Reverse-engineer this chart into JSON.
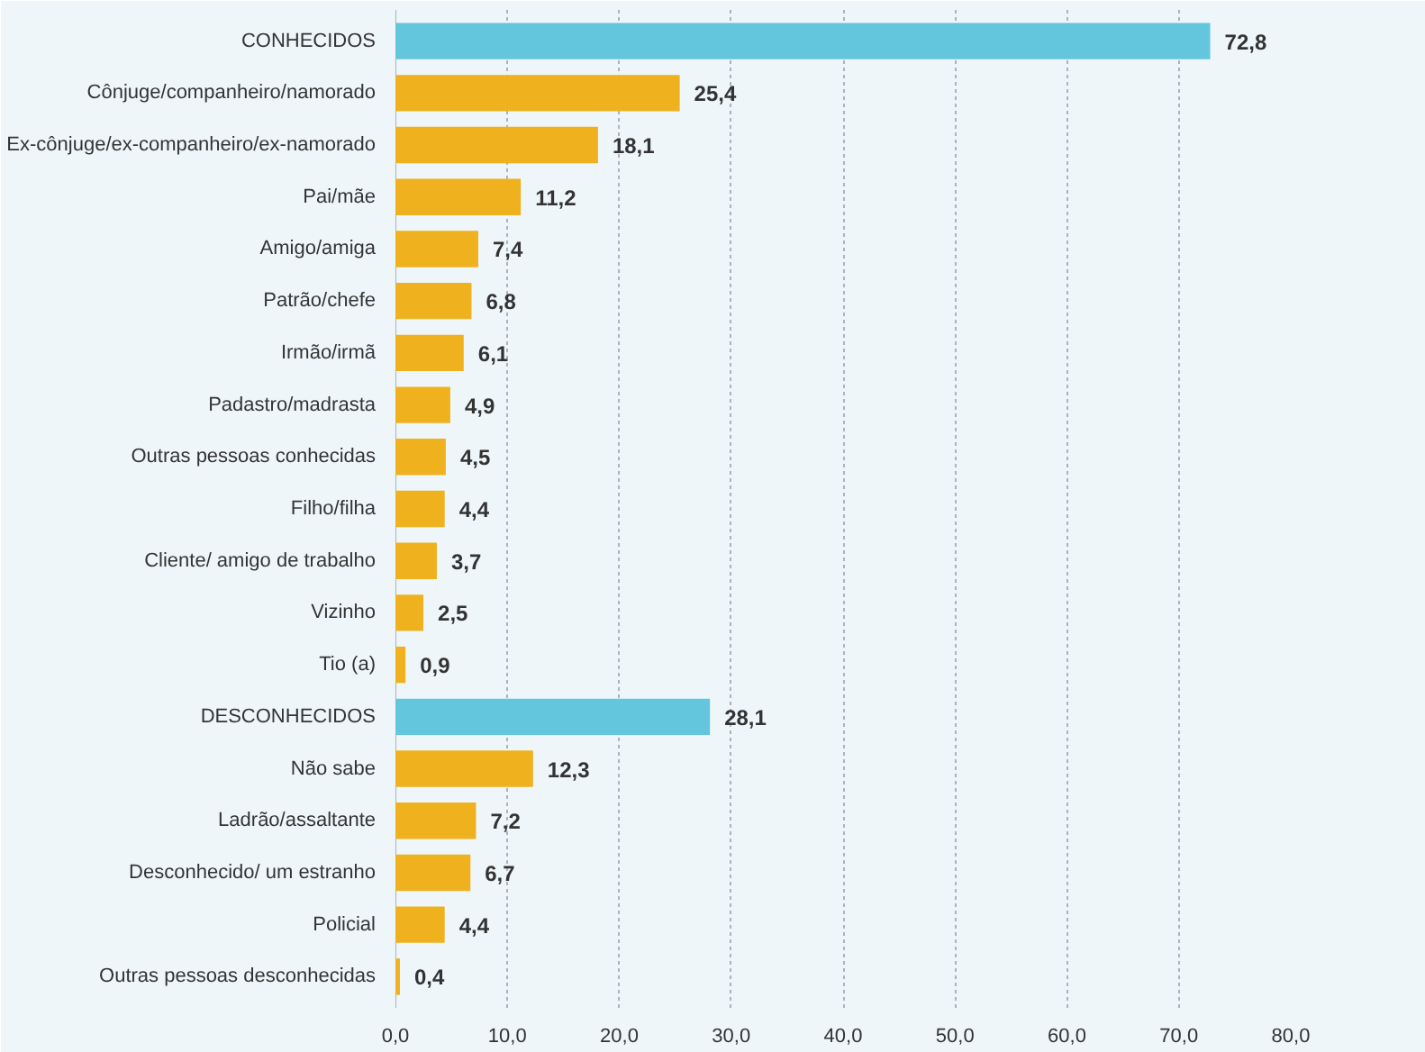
{
  "chart_data": {
    "type": "bar",
    "orientation": "horizontal",
    "categories": [
      "CONHECIDOS",
      "Cônjuge/companheiro/namorado",
      "Ex-cônjuge/ex-companheiro/ex-namorado",
      "Pai/mãe",
      "Amigo/amiga",
      "Patrão/chefe",
      "Irmão/irmã",
      "Padastro/madrasta",
      "Outras pessoas conhecidas",
      "Filho/filha",
      "Cliente/ amigo de trabalho",
      "Vizinho",
      "Tio (a)",
      "DESCONHECIDOS",
      "Não sabe",
      "Ladrão/assaltante",
      "Desconhecido/ um estranho",
      "Policial",
      "Outras pessoas desconhecidas"
    ],
    "values": [
      72.8,
      25.4,
      18.1,
      11.2,
      7.4,
      6.8,
      6.1,
      4.9,
      4.5,
      4.4,
      3.7,
      2.5,
      0.9,
      28.1,
      12.3,
      7.2,
      6.7,
      4.4,
      0.4
    ],
    "value_labels": [
      "72,8",
      "25,4",
      "18,1",
      "11,2",
      "7,4",
      "6,8",
      "6,1",
      "4,9",
      "4,5",
      "4,4",
      "3,7",
      "2,5",
      "0,9",
      "28,1",
      "12,3",
      "7,2",
      "6,7",
      "4,4",
      "0,4"
    ],
    "colors": [
      "#64c6dd",
      "#efb21e",
      "#efb21e",
      "#efb21e",
      "#efb21e",
      "#efb21e",
      "#efb21e",
      "#efb21e",
      "#efb21e",
      "#efb21e",
      "#efb21e",
      "#efb21e",
      "#efb21e",
      "#64c6dd",
      "#efb21e",
      "#efb21e",
      "#efb21e",
      "#efb21e",
      "#efb21e"
    ],
    "xlim": [
      0,
      80
    ],
    "xticks": [
      {
        "value": 0,
        "label": "0,0"
      },
      {
        "value": 10,
        "label": "10,0"
      },
      {
        "value": 20,
        "label": "20,0"
      },
      {
        "value": 30,
        "label": "30,0"
      },
      {
        "value": 40,
        "label": "40,0"
      },
      {
        "value": 50,
        "label": "50,0"
      },
      {
        "value": 60,
        "label": "60,0"
      },
      {
        "value": 70,
        "label": "70,0"
      },
      {
        "value": 80,
        "label": "80,0"
      }
    ],
    "grid": "x"
  }
}
